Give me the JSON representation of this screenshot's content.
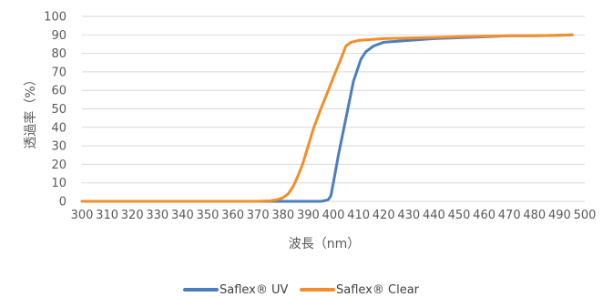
{
  "chart_data": {
    "type": "line",
    "title": "",
    "xlabel": "波長（nm）",
    "ylabel": "透過率（%）",
    "xlim": [
      300,
      500
    ],
    "ylim": [
      0,
      100
    ],
    "xticks": [
      300,
      310,
      320,
      330,
      340,
      350,
      360,
      370,
      380,
      390,
      400,
      410,
      420,
      430,
      440,
      450,
      460,
      470,
      480,
      490,
      500
    ],
    "yticks": [
      0,
      10,
      20,
      30,
      40,
      50,
      60,
      70,
      80,
      90,
      100
    ],
    "grid": true,
    "legend": "bottom",
    "series": [
      {
        "name": "Saflex® UV",
        "color": "#4a7ebf",
        "x": [
          300,
          370,
          390,
          395,
          397,
          398,
          399,
          400,
          402,
          405,
          408,
          411,
          413,
          416,
          420,
          425,
          430,
          440,
          450,
          460,
          470,
          480,
          490,
          495
        ],
        "y": [
          0,
          0,
          0,
          0,
          0.5,
          1,
          3,
          10,
          25,
          45,
          65,
          77,
          81,
          84,
          86,
          86.5,
          87,
          88,
          88.5,
          89,
          89.5,
          89.5,
          89.8,
          90
        ]
      },
      {
        "name": "Saflex® Clear",
        "color": "#f28e2b",
        "x": [
          300,
          370,
          375,
          378,
          380,
          382,
          384,
          386,
          388,
          390,
          392,
          395,
          398,
          400,
          403,
          405,
          407,
          410,
          415,
          420,
          430,
          440,
          450,
          460,
          470,
          480,
          490,
          495
        ],
        "y": [
          0,
          0,
          0.3,
          1,
          2,
          4,
          8,
          14,
          21,
          30,
          39,
          50,
          60,
          67,
          77,
          84,
          86,
          87,
          87.5,
          88,
          88.3,
          88.6,
          89,
          89.3,
          89.5,
          89.6,
          89.8,
          90
        ]
      }
    ]
  }
}
